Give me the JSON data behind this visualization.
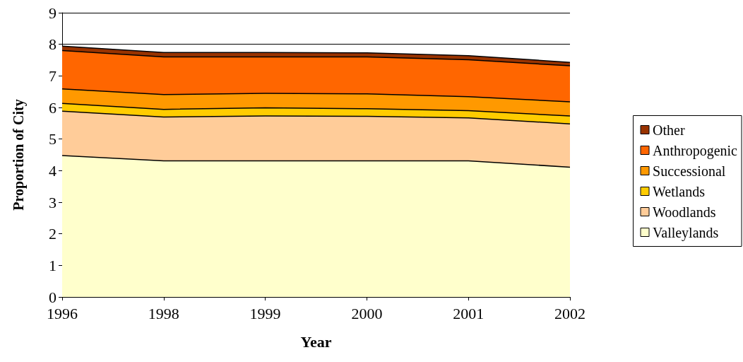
{
  "chart_data": {
    "type": "area",
    "stacked": true,
    "xlabel": "Year",
    "ylabel": "Proportion of City",
    "categories": [
      "1996",
      "1998",
      "1999",
      "2000",
      "2001",
      "2002"
    ],
    "series": [
      {
        "name": "Valleylands",
        "color": "#ffffcc",
        "values": [
          4.48,
          4.31,
          4.31,
          4.31,
          4.31,
          4.11
        ]
      },
      {
        "name": "Woodlands",
        "color": "#ffcc99",
        "values": [
          1.4,
          1.39,
          1.42,
          1.41,
          1.36,
          1.37
        ]
      },
      {
        "name": "Wetlands",
        "color": "#ffcc00",
        "values": [
          0.25,
          0.24,
          0.26,
          0.24,
          0.23,
          0.25
        ]
      },
      {
        "name": "Successional",
        "color": "#ff9900",
        "values": [
          0.46,
          0.47,
          0.46,
          0.47,
          0.44,
          0.45
        ]
      },
      {
        "name": "Anthropogenic",
        "color": "#ff6600",
        "values": [
          1.21,
          1.19,
          1.15,
          1.17,
          1.17,
          1.14
        ]
      },
      {
        "name": "Other",
        "color": "#993300",
        "values": [
          0.14,
          0.14,
          0.14,
          0.13,
          0.13,
          0.11
        ]
      }
    ],
    "ylim": [
      0,
      9
    ],
    "yticks": [
      0,
      1,
      2,
      3,
      4,
      5,
      6,
      7,
      8,
      9
    ],
    "grid": "y",
    "legend": "right",
    "marker": "none"
  }
}
